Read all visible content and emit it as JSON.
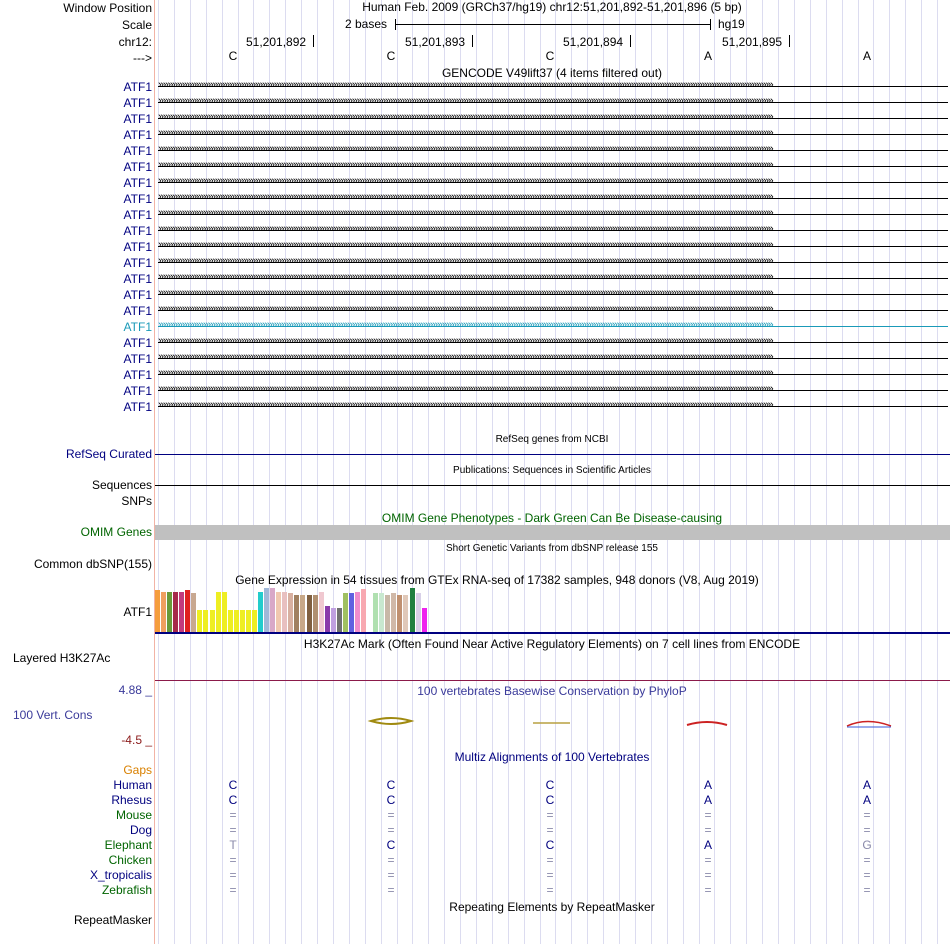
{
  "header": {
    "title": "Human Feb. 2009 (GRCh37/hg19)   chr12:51,201,892-51,201,896 (5 bp)",
    "scale_text": "2 bases",
    "assembly": "hg19",
    "ticks": [
      "51,201,892",
      "51,201,893",
      "51,201,894",
      "51,201,895"
    ]
  },
  "sidebar": {
    "window_position": "Window Position",
    "scale": "Scale",
    "chrom": "chr12:",
    "strand": "--->",
    "atf1": "ATF1",
    "refseq": "RefSeq Curated",
    "sequences": "Sequences",
    "snps": "SNPs",
    "omim": "OMIM Genes",
    "dbsnp": "Common dbSNP(155)",
    "gtex_gene": "ATF1",
    "h3k27ac": "Layered H3K27Ac",
    "cons_max": "4.88 _",
    "cons": "100 Vert. Cons",
    "cons_min": "-4.5 _",
    "gaps": "Gaps",
    "species": [
      {
        "name": "Human",
        "color": "#00007f"
      },
      {
        "name": "Rhesus",
        "color": "#00007f"
      },
      {
        "name": "Mouse",
        "color": "#006400"
      },
      {
        "name": "Dog",
        "color": "#00007f"
      },
      {
        "name": "Elephant",
        "color": "#006400"
      },
      {
        "name": "Chicken",
        "color": "#006400"
      },
      {
        "name": "X_tropicalis",
        "color": "#00007f"
      },
      {
        "name": "Zebrafish",
        "color": "#006400"
      }
    ],
    "repeatmasker": "RepeatMasker"
  },
  "dna": [
    "C",
    "C",
    "C",
    "A",
    "A"
  ],
  "tracks": {
    "gencode": "GENCODE V49lift37 (4 items filtered out)",
    "refseq": "RefSeq genes from NCBI",
    "publications": "Publications: Sequences in Scientific Articles",
    "omim": "OMIM Gene Phenotypes - Dark Green Can Be Disease-causing",
    "dbsnp": "Short Genetic Variants from dbSNP release 155",
    "gtex": "Gene Expression in 54 tissues from GTEx RNA-seq of 17382 samples, 948 donors (V8, Aug 2019)",
    "h3k27ac": "H3K27Ac Mark (Often Found Near Active Regulatory Elements) on 7 cell lines from ENCODE",
    "phylop": "100 vertebrates Basewise Conservation by PhyloP",
    "multiz": "Multiz Alignments of 100 Vertebrates",
    "repeatmasker": "Repeating Elements by RepeatMasker"
  },
  "colors": {
    "gene_navy": "#000080",
    "highlight_teal": "#1a9ab8",
    "omim_green": "#006400",
    "omim_bar": "#c0c0c0",
    "cons_blue": "#3a3a9a",
    "cons_min_red": "#8b1a1a",
    "gaps_orange": "#d98000"
  },
  "gtex_values": [
    {
      "v": 0.95,
      "c": "#f59d3d"
    },
    {
      "v": 0.92,
      "c": "#f0a060"
    },
    {
      "v": 0.9,
      "c": "#6a9a3a"
    },
    {
      "v": 0.92,
      "c": "#a62a4a"
    },
    {
      "v": 0.92,
      "c": "#c23b7e"
    },
    {
      "v": 0.96,
      "c": "#e02020"
    },
    {
      "v": 0.88,
      "c": "#c8a890"
    },
    {
      "v": 0.5,
      "c": "#eeee22"
    },
    {
      "v": 0.5,
      "c": "#eeee22"
    },
    {
      "v": 0.5,
      "c": "#eeee22"
    },
    {
      "v": 0.92,
      "c": "#eeee22"
    },
    {
      "v": 0.92,
      "c": "#eeee22"
    },
    {
      "v": 0.5,
      "c": "#eeee22"
    },
    {
      "v": 0.5,
      "c": "#eeee22"
    },
    {
      "v": 0.5,
      "c": "#eeee22"
    },
    {
      "v": 0.5,
      "c": "#eeee22"
    },
    {
      "v": 0.5,
      "c": "#eeee22"
    },
    {
      "v": 0.92,
      "c": "#22cccc"
    },
    {
      "v": 1.0,
      "c": "#a0b8d8"
    },
    {
      "v": 1.0,
      "c": "#d8a8c8"
    },
    {
      "v": 0.92,
      "c": "#f0c8b0"
    },
    {
      "v": 0.92,
      "c": "#e8c0c0"
    },
    {
      "v": 0.88,
      "c": "#d8b0a0"
    },
    {
      "v": 0.85,
      "c": "#a08060"
    },
    {
      "v": 0.85,
      "c": "#c8a888"
    },
    {
      "v": 0.85,
      "c": "#806040"
    },
    {
      "v": 0.85,
      "c": "#b09070"
    },
    {
      "v": 0.92,
      "c": "#f0c8d0"
    },
    {
      "v": 0.6,
      "c": "#8a3aaa"
    },
    {
      "v": 0.55,
      "c": "#c0a0e0"
    },
    {
      "v": 0.55,
      "c": "#707070"
    },
    {
      "v": 0.88,
      "c": "#a0c060"
    },
    {
      "v": 0.88,
      "c": "#6060e0"
    },
    {
      "v": 0.92,
      "c": "#f08ccc"
    },
    {
      "v": 0.98,
      "c": "#f8a8b0"
    },
    {
      "v": 0.5,
      "c": "#ffffff"
    },
    {
      "v": 0.88,
      "c": "#b0e0b0"
    },
    {
      "v": 0.88,
      "c": "#c8e8d0"
    },
    {
      "v": 0.85,
      "c": "#c8b8a8"
    },
    {
      "v": 0.88,
      "c": "#d0b8a8"
    },
    {
      "v": 0.85,
      "c": "#c09070"
    },
    {
      "v": 0.85,
      "c": "#e0c8b8"
    },
    {
      "v": 1.0,
      "c": "#208040"
    },
    {
      "v": 0.88,
      "c": "#d8d0e8"
    },
    {
      "v": 0.55,
      "c": "#ee22ee"
    }
  ],
  "multiz": [
    [
      "C",
      "C",
      "C",
      "A",
      "A"
    ],
    [
      "C",
      "C",
      "C",
      "A",
      "A"
    ],
    [
      "=",
      "=",
      "=",
      "=",
      "="
    ],
    [
      "=",
      "=",
      "=",
      "=",
      "="
    ],
    [
      "T",
      "C",
      "C",
      "A",
      "G"
    ],
    [
      "=",
      "=",
      "=",
      "=",
      "="
    ],
    [
      "=",
      "=",
      "=",
      "=",
      "="
    ],
    [
      "=",
      "=",
      "=",
      "=",
      "="
    ]
  ]
}
